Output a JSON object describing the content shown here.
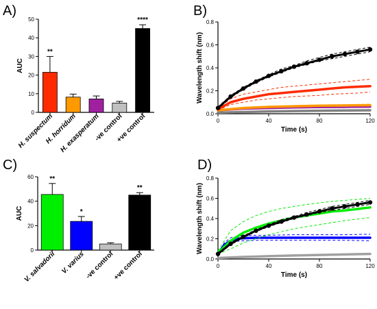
{
  "panel_labels": [
    "A)",
    "B)",
    "C)",
    "D)"
  ],
  "chart_data": [
    {
      "panel": "A)",
      "type": "bar",
      "ylabel": "AUC",
      "xlabel": "",
      "ylim": [
        0,
        50
      ],
      "yticks": [
        0,
        10,
        20,
        30,
        40,
        50
      ],
      "categories": [
        "H. suspectum",
        "H. horridum",
        "H. exasperatum",
        "-ve control",
        "+ve control"
      ],
      "italic_categories": [
        true,
        true,
        true,
        false,
        false
      ],
      "values": [
        21.5,
        8.2,
        7.2,
        5.0,
        45.0
      ],
      "errors": [
        8.5,
        1.6,
        1.6,
        0.9,
        2.0
      ],
      "colors": [
        "#ff2a00",
        "#ff9900",
        "#a020a0",
        "#c0c0c0",
        "#000000"
      ],
      "significance": [
        "**",
        "",
        "",
        "",
        "****"
      ],
      "grid": false
    },
    {
      "panel": "B)",
      "type": "line",
      "ylabel": "Wavelength shift (nm)",
      "xlabel": "Time (s)",
      "xlim": [
        0,
        120
      ],
      "ylim": [
        0,
        0.8
      ],
      "xticks": [
        0,
        40,
        80,
        120
      ],
      "yticks": [
        0.0,
        0.2,
        0.4,
        0.6,
        0.8
      ],
      "grid": false,
      "series": [
        {
          "color": "#000000",
          "style": "dots",
          "x": [
            0,
            10,
            20,
            30,
            40,
            50,
            60,
            70,
            80,
            90,
            100,
            110,
            120
          ],
          "y": [
            0.05,
            0.15,
            0.22,
            0.28,
            0.33,
            0.37,
            0.41,
            0.44,
            0.47,
            0.5,
            0.52,
            0.54,
            0.56
          ],
          "ci_upper": [
            0.06,
            0.16,
            0.23,
            0.29,
            0.34,
            0.39,
            0.42,
            0.46,
            0.49,
            0.52,
            0.54,
            0.56,
            0.58
          ],
          "ci_lower": [
            0.04,
            0.14,
            0.21,
            0.27,
            0.32,
            0.36,
            0.4,
            0.43,
            0.46,
            0.48,
            0.5,
            0.52,
            0.54
          ]
        },
        {
          "color": "#ff2a00",
          "style": "solid",
          "x": [
            0,
            10,
            20,
            30,
            40,
            50,
            60,
            70,
            80,
            90,
            100,
            110,
            120
          ],
          "y": [
            0.04,
            0.1,
            0.13,
            0.15,
            0.17,
            0.18,
            0.19,
            0.2,
            0.21,
            0.22,
            0.23,
            0.235,
            0.24
          ],
          "ci_upper": [
            0.05,
            0.13,
            0.17,
            0.19,
            0.21,
            0.23,
            0.24,
            0.25,
            0.26,
            0.27,
            0.28,
            0.29,
            0.3
          ],
          "ci_lower": [
            0.03,
            0.08,
            0.1,
            0.12,
            0.13,
            0.14,
            0.15,
            0.155,
            0.16,
            0.17,
            0.175,
            0.18,
            0.19
          ]
        },
        {
          "color": "#ff9900",
          "style": "solid",
          "x": [
            0,
            20,
            40,
            60,
            80,
            100,
            120
          ],
          "y": [
            0.03,
            0.05,
            0.06,
            0.065,
            0.07,
            0.072,
            0.075
          ],
          "ci_upper": [
            0.035,
            0.056,
            0.066,
            0.072,
            0.077,
            0.08,
            0.083
          ],
          "ci_lower": [
            0.025,
            0.044,
            0.054,
            0.058,
            0.063,
            0.065,
            0.067
          ]
        },
        {
          "color": "#a020a0",
          "style": "solid",
          "x": [
            0,
            20,
            40,
            60,
            80,
            100,
            120
          ],
          "y": [
            0.03,
            0.045,
            0.05,
            0.055,
            0.058,
            0.06,
            0.062
          ],
          "ci_upper": [
            0.035,
            0.05,
            0.056,
            0.061,
            0.064,
            0.067,
            0.069
          ],
          "ci_lower": [
            0.025,
            0.04,
            0.044,
            0.049,
            0.052,
            0.053,
            0.055
          ]
        },
        {
          "color": "#808080",
          "style": "solid",
          "x": [
            0,
            20,
            40,
            60,
            80,
            100,
            120
          ],
          "y": [
            0.01,
            0.015,
            0.02,
            0.023,
            0.026,
            0.028,
            0.03
          ]
        }
      ]
    },
    {
      "panel": "C)",
      "type": "bar",
      "ylabel": "AUC",
      "xlabel": "",
      "ylim": [
        0,
        60
      ],
      "yticks": [
        0,
        20,
        40,
        60
      ],
      "categories": [
        "V. salvadorii",
        "V. varius",
        "-ve control",
        "+ve control"
      ],
      "italic_categories": [
        true,
        true,
        false,
        false
      ],
      "values": [
        45.5,
        23.5,
        5.0,
        45.0
      ],
      "errors": [
        9.0,
        4.0,
        1.0,
        2.0
      ],
      "colors": [
        "#00ee00",
        "#0000ff",
        "#c0c0c0",
        "#000000"
      ],
      "significance": [
        "**",
        "*",
        "",
        "**"
      ],
      "grid": false
    },
    {
      "panel": "D)",
      "type": "line",
      "ylabel": "Wavelength shift (nm)",
      "xlabel": "Time (s)",
      "xlim": [
        0,
        120
      ],
      "ylim": [
        0,
        0.8
      ],
      "xticks": [
        0,
        40,
        80,
        120
      ],
      "yticks": [
        0.0,
        0.2,
        0.4,
        0.6,
        0.8
      ],
      "grid": false,
      "series": [
        {
          "color": "#000000",
          "style": "dots",
          "x": [
            0,
            10,
            20,
            30,
            40,
            50,
            60,
            70,
            80,
            90,
            100,
            110,
            120
          ],
          "y": [
            0.05,
            0.15,
            0.22,
            0.28,
            0.33,
            0.37,
            0.41,
            0.44,
            0.47,
            0.5,
            0.52,
            0.54,
            0.56
          ],
          "ci_upper": [
            0.06,
            0.16,
            0.23,
            0.29,
            0.34,
            0.39,
            0.42,
            0.46,
            0.49,
            0.52,
            0.54,
            0.56,
            0.58
          ],
          "ci_lower": [
            0.04,
            0.14,
            0.21,
            0.27,
            0.32,
            0.36,
            0.4,
            0.43,
            0.46,
            0.48,
            0.5,
            0.52,
            0.54
          ]
        },
        {
          "color": "#00ee00",
          "style": "solid",
          "x": [
            0,
            10,
            20,
            30,
            40,
            50,
            60,
            70,
            80,
            90,
            100,
            110,
            120
          ],
          "y": [
            0.06,
            0.18,
            0.26,
            0.31,
            0.35,
            0.38,
            0.41,
            0.43,
            0.45,
            0.47,
            0.48,
            0.495,
            0.51
          ],
          "ci_upper": [
            0.08,
            0.28,
            0.37,
            0.43,
            0.47,
            0.5,
            0.52,
            0.54,
            0.555,
            0.57,
            0.58,
            0.59,
            0.6
          ],
          "ci_lower": [
            0.05,
            0.1,
            0.16,
            0.2,
            0.24,
            0.27,
            0.3,
            0.32,
            0.34,
            0.36,
            0.38,
            0.395,
            0.41
          ]
        },
        {
          "color": "#0000ff",
          "style": "solid",
          "x": [
            0,
            5,
            10,
            15,
            20,
            30,
            40,
            60,
            80,
            100,
            120
          ],
          "y": [
            0.05,
            0.14,
            0.18,
            0.2,
            0.205,
            0.21,
            0.21,
            0.21,
            0.21,
            0.21,
            0.21
          ],
          "ci_upper": [
            0.06,
            0.16,
            0.21,
            0.225,
            0.23,
            0.235,
            0.235,
            0.24,
            0.24,
            0.24,
            0.245
          ],
          "ci_lower": [
            0.04,
            0.12,
            0.16,
            0.175,
            0.18,
            0.185,
            0.185,
            0.185,
            0.185,
            0.185,
            0.18
          ]
        },
        {
          "color": "#a0a0a0",
          "style": "solid",
          "x": [
            0,
            20,
            40,
            60,
            80,
            100,
            120
          ],
          "y": [
            0.01,
            0.02,
            0.028,
            0.035,
            0.04,
            0.045,
            0.05
          ]
        }
      ]
    }
  ]
}
